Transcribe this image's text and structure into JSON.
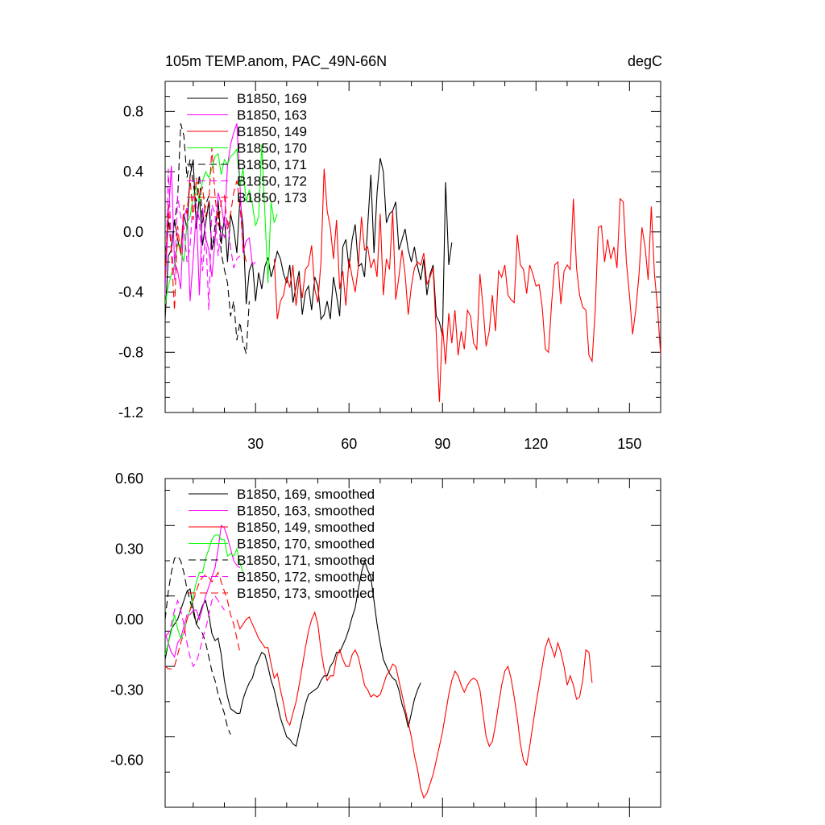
{
  "figure": {
    "title_left": "105m TEMP.anom, PAC_49N-66N",
    "title_right": "degC"
  },
  "chart_data": [
    {
      "type": "line",
      "panel": "top",
      "title": "105m TEMP.anom, PAC_49N-66N",
      "units": "degC",
      "xlim": [
        1,
        160
      ],
      "ylim": [
        -1.2,
        1.0
      ],
      "xticks": [
        30,
        60,
        90,
        120,
        150
      ],
      "yticks": [
        0.8,
        0.4,
        0.0,
        -0.4,
        -0.8,
        -1.2
      ],
      "ytick_labels": [
        "0.8",
        "0.4",
        "0.0",
        "-0.4",
        "-0.8",
        "-1.2"
      ],
      "legend_position": "top-left",
      "series": [
        {
          "name": "B1850, 169",
          "color": "#000000",
          "dash": "solid",
          "x_start": 1,
          "values": [
            -0.58,
            -0.16,
            -0.12,
            0.08,
            -0.05,
            -0.14,
            0.12,
            0.02,
            0.37,
            0.48,
            0.02,
            0.24,
            -0.09,
            0.06,
            0.2,
            -0.12,
            -0.04,
            0.21,
            -0.08,
            0.1,
            -0.2,
            0.12,
            0.02,
            -0.14,
            0.22,
            0.04,
            -0.48,
            -0.26,
            -0.2,
            -0.46,
            -0.27,
            -0.38,
            -0.23,
            -0.17,
            -0.3,
            -0.22,
            -0.13,
            -0.18,
            -0.28,
            -0.34,
            -0.22,
            -0.47,
            -0.36,
            -0.26,
            -0.55,
            -0.4,
            -0.36,
            -0.52,
            -0.3,
            -0.36,
            -0.58,
            -0.55,
            -0.46,
            -0.58,
            -0.3,
            -0.42,
            -0.56,
            -0.1,
            -0.05,
            -0.24,
            -0.05,
            0.05,
            -0.23,
            -0.21,
            -0.3,
            0.04,
            0.38,
            -0.14,
            0.26,
            0.49,
            0.4,
            0.06,
            0.12,
            0.14,
            0.2,
            -0.12,
            -0.05,
            0.02,
            -0.12,
            -0.2,
            -0.1,
            -0.23,
            -0.32,
            -0.18,
            -0.42,
            -0.28,
            -0.22,
            -0.56,
            -0.6,
            -0.69,
            0.33,
            -0.22,
            -0.07
          ]
        },
        {
          "name": "B1850, 163",
          "color": "#ff00ff",
          "dash": "solid",
          "x_start": 1,
          "values": [
            -0.35,
            0.08,
            0.44,
            -0.2,
            -0.26,
            -0.38,
            0.1,
            0.16,
            -0.46,
            -0.18,
            0.14,
            -0.42,
            0.16,
            -0.04,
            -0.12,
            -0.3,
            -0.06,
            0.26,
            0.18,
            0.04,
            0.44,
            0.58,
            0.66,
            0.72,
            0.32,
            -0.14,
            -0.06,
            -0.04,
            -0.22,
            -0.2
          ]
        },
        {
          "name": "B1850, 149",
          "color": "#ff0000",
          "dash": "solid",
          "x_start": 36,
          "values": [
            -0.18,
            -0.58,
            -0.46,
            -0.42,
            -0.3,
            -0.37,
            -0.22,
            -0.49,
            -0.3,
            -0.44,
            -0.25,
            -0.22,
            -0.09,
            -0.38,
            -0.47,
            -0.2,
            0.42,
            0.14,
            0.03,
            -0.18,
            0.08,
            -0.38,
            -0.26,
            -0.49,
            -0.18,
            -0.3,
            -0.4,
            -0.23,
            0.1,
            -0.12,
            -0.1,
            -0.24,
            -0.18,
            -0.3,
            0.12,
            -0.42,
            -0.18,
            -0.25,
            0.14,
            -0.45,
            -0.3,
            -0.12,
            -0.28,
            -0.55,
            -0.36,
            -0.24,
            -0.2,
            -0.22,
            -0.14,
            -0.35,
            -0.3,
            -0.24,
            -0.68,
            -1.13,
            -0.62,
            -0.88,
            -0.54,
            -0.74,
            -0.52,
            -0.82,
            -0.66,
            -0.78,
            -0.52,
            -0.56,
            -0.74,
            -0.78,
            -0.28,
            -0.5,
            -0.76,
            -0.66,
            -0.42,
            -0.66,
            -0.26,
            -0.3,
            -0.22,
            -0.42,
            -0.45,
            -0.47,
            -0.02,
            -0.22,
            -0.25,
            -0.41,
            -0.22,
            -0.28,
            -0.36,
            -0.35,
            -0.5,
            -0.78,
            -0.8,
            -0.48,
            -0.22,
            -0.2,
            -0.48,
            -0.26,
            -0.22,
            -0.25,
            0.22,
            -0.24,
            -0.42,
            -0.5,
            -0.52,
            -0.82,
            -0.86,
            -0.52,
            0.03,
            0.04,
            -0.2,
            -0.05,
            -0.18,
            -0.1,
            -0.24,
            0.22,
            0.2,
            -0.2,
            -0.42,
            -0.68,
            -0.52,
            -0.3,
            0.03,
            -0.1,
            -0.32,
            0.17,
            -0.28,
            -0.5,
            -0.82
          ]
        },
        {
          "name": "B1850, 170",
          "color": "#00ff00",
          "dash": "solid",
          "x_start": 1,
          "values": [
            -0.48,
            -0.36,
            -0.28,
            -0.22,
            -0.08,
            -0.12,
            -0.2,
            0.06,
            0.1,
            0.24,
            0.3,
            0.2,
            0.34,
            0.4,
            0.36,
            0.42,
            0.5,
            0.52,
            0.38,
            0.48,
            0.45,
            0.5,
            0.52,
            0.55,
            0.3,
            0.42,
            0.2,
            0.28,
            0.18,
            0.04,
            0.1,
            0.58,
            0.12,
            -0.34,
            0.2,
            0.06,
            0.12
          ]
        },
        {
          "name": "B1850, 171",
          "color": "#000000",
          "dash": "dashed",
          "x_start": 1,
          "values": [
            -0.2,
            0.08,
            -0.1,
            0.06,
            0.22,
            0.72,
            0.64,
            0.36,
            0.48,
            0.32,
            0.2,
            0.38,
            0.06,
            0.18,
            0.24,
            -0.12,
            0.04,
            0.14,
            -0.14,
            -0.25,
            -0.34,
            -0.56,
            -0.46,
            -0.72,
            -0.6,
            -0.74,
            -0.81,
            -0.46
          ]
        },
        {
          "name": "B1850, 172",
          "color": "#ff00ff",
          "dash": "dashed",
          "x_start": 1,
          "values": [
            -0.42,
            0.42,
            -0.1,
            -0.32,
            0.24,
            0.1,
            0.04,
            -0.2,
            -0.1,
            0.24,
            0.18,
            0.08,
            -0.26,
            0.0,
            -0.52,
            0.18,
            0.12,
            -0.16,
            0.04,
            -0.04,
            0.08,
            -0.1,
            -0.24,
            -0.18,
            -0.16
          ]
        },
        {
          "name": "B1850, 173",
          "color": "#ff0000",
          "dash": "dashed",
          "x_start": 1,
          "values": [
            -0.3,
            0.18,
            -0.14,
            -0.52,
            0.04,
            -0.16,
            0.18,
            0.12,
            0.36,
            0.08,
            0.36,
            0.24,
            0.3,
            0.1,
            0.2,
            0.56,
            0.24,
            0.04,
            0.2,
            0.24,
            0.02,
            0.12,
            0.26,
            0.34,
            0.18,
            -0.1,
            -0.2
          ]
        }
      ]
    },
    {
      "type": "line",
      "panel": "bottom",
      "xlim": [
        1,
        160
      ],
      "ylim": [
        -0.8,
        0.6
      ],
      "xticks": [
        30,
        60,
        90,
        120,
        150
      ],
      "yticks": [
        0.6,
        0.3,
        0.0,
        -0.3,
        -0.6
      ],
      "ytick_labels": [
        "0.60",
        "0.30",
        "0.00",
        "-0.30",
        "-0.60"
      ],
      "legend_position": "top-left",
      "series": [
        {
          "name": "B1850, 169, smoothed",
          "color": "#000000",
          "dash": "solid",
          "x_start": 1,
          "values": [
            -0.17,
            -0.1,
            -0.04,
            -0.02,
            0.0,
            0.04,
            0.08,
            0.12,
            0.13,
            0.05,
            -0.02,
            0.02,
            0.06,
            0.08,
            0.02,
            -0.06,
            -0.09,
            -0.08,
            -0.15,
            -0.26,
            -0.33,
            -0.38,
            -0.39,
            -0.4,
            -0.4,
            -0.34,
            -0.3,
            -0.27,
            -0.25,
            -0.2,
            -0.17,
            -0.14,
            -0.15,
            -0.2,
            -0.26,
            -0.3,
            -0.36,
            -0.42,
            -0.46,
            -0.5,
            -0.51,
            -0.53,
            -0.54,
            -0.48,
            -0.42,
            -0.36,
            -0.32,
            -0.31,
            -0.3,
            -0.29,
            -0.26,
            -0.24,
            -0.24,
            -0.2,
            -0.18,
            -0.14,
            -0.14,
            -0.11,
            -0.08,
            -0.04,
            0.01,
            0.05,
            0.13,
            0.2,
            0.25,
            0.21,
            0.18,
            0.08,
            -0.02,
            -0.1,
            -0.17,
            -0.2,
            -0.23,
            -0.25,
            -0.26,
            -0.3,
            -0.36,
            -0.4,
            -0.46,
            -0.4,
            -0.34,
            -0.3,
            -0.27
          ]
        },
        {
          "name": "B1850, 163, smoothed",
          "color": "#ff00ff",
          "dash": "solid",
          "x_start": 1,
          "values": [
            -0.06,
            -0.1,
            -0.14,
            -0.16,
            -0.1,
            -0.08,
            -0.03,
            0.02,
            0.02,
            0.04,
            0.04,
            0.0,
            0.05,
            0.1,
            0.14,
            0.18,
            0.22,
            0.3,
            0.4,
            0.39,
            0.35,
            0.3,
            0.25,
            0.23,
            0.22
          ]
        },
        {
          "name": "B1850, 149, smoothed",
          "color": "#ff0000",
          "dash": "solid",
          "x_start": 24,
          "values": [
            0.0,
            -0.04,
            -0.02,
            0.0,
            0.01,
            -0.02,
            -0.05,
            -0.08,
            -0.1,
            -0.12,
            -0.12,
            -0.19,
            -0.25,
            -0.23,
            -0.3,
            -0.36,
            -0.43,
            -0.45,
            -0.4,
            -0.35,
            -0.28,
            -0.2,
            -0.12,
            -0.05,
            0.0,
            0.03,
            -0.02,
            -0.13,
            -0.21,
            -0.26,
            -0.24,
            -0.24,
            -0.16,
            -0.13,
            -0.17,
            -0.2,
            -0.2,
            -0.15,
            -0.13,
            -0.16,
            -0.22,
            -0.28,
            -0.3,
            -0.33,
            -0.32,
            -0.33,
            -0.32,
            -0.28,
            -0.24,
            -0.22,
            -0.19,
            -0.2,
            -0.26,
            -0.32,
            -0.38,
            -0.44,
            -0.5,
            -0.58,
            -0.64,
            -0.72,
            -0.76,
            -0.74,
            -0.7,
            -0.66,
            -0.6,
            -0.54,
            -0.48,
            -0.4,
            -0.32,
            -0.26,
            -0.22,
            -0.24,
            -0.28,
            -0.31,
            -0.28,
            -0.26,
            -0.25,
            -0.26,
            -0.3,
            -0.4,
            -0.5,
            -0.54,
            -0.52,
            -0.45,
            -0.36,
            -0.28,
            -0.22,
            -0.2,
            -0.25,
            -0.33,
            -0.42,
            -0.53,
            -0.6,
            -0.62,
            -0.54,
            -0.45,
            -0.36,
            -0.28,
            -0.2,
            -0.12,
            -0.08,
            -0.12,
            -0.16,
            -0.1,
            -0.14,
            -0.2,
            -0.28,
            -0.24,
            -0.28,
            -0.34,
            -0.33,
            -0.26,
            -0.13,
            -0.14,
            -0.27
          ]
        },
        {
          "name": "B1850, 170, smoothed",
          "color": "#00ff00",
          "dash": "solid",
          "x_start": 1,
          "values": [
            -0.15,
            -0.1,
            -0.05,
            0.02,
            -0.04,
            -0.08,
            -0.06,
            0.0,
            0.04,
            0.1,
            0.16,
            0.2,
            0.2,
            0.26,
            0.3,
            0.34,
            0.36,
            0.36,
            0.34,
            0.34,
            0.27,
            0.28,
            0.27,
            0.3,
            0.24,
            0.2
          ]
        },
        {
          "name": "B1850, 171, smoothed",
          "color": "#000000",
          "dash": "dashed",
          "x_start": 1,
          "values": [
            0.0,
            0.12,
            0.2,
            0.26,
            0.27,
            0.25,
            0.2,
            0.13,
            0.08,
            0.03,
            -0.02,
            -0.04,
            -0.06,
            -0.1,
            -0.16,
            -0.22,
            -0.26,
            -0.32,
            -0.36,
            -0.4,
            -0.46,
            -0.49
          ]
        },
        {
          "name": "B1850, 172, smoothed",
          "color": "#ff00ff",
          "dash": "dashed",
          "x_start": 1,
          "values": [
            -0.07,
            -0.06,
            -0.02,
            0.04,
            0.08,
            0.04,
            -0.02,
            -0.1,
            -0.16,
            -0.2,
            -0.18,
            -0.14,
            -0.08,
            -0.04,
            0.02,
            0.08,
            0.1,
            0.08,
            0.06,
            0.04
          ]
        },
        {
          "name": "B1850, 173, smoothed",
          "color": "#ff0000",
          "dash": "dashed",
          "x_start": 1,
          "values": [
            -0.2,
            -0.21,
            -0.21,
            -0.2,
            -0.15,
            -0.1,
            -0.06,
            0.0,
            0.04,
            0.08,
            0.12,
            0.16,
            0.18,
            0.19,
            0.18,
            0.16,
            0.18,
            0.2,
            0.16,
            0.12,
            0.08,
            0.02,
            -0.02,
            -0.08,
            -0.14
          ]
        }
      ]
    }
  ]
}
